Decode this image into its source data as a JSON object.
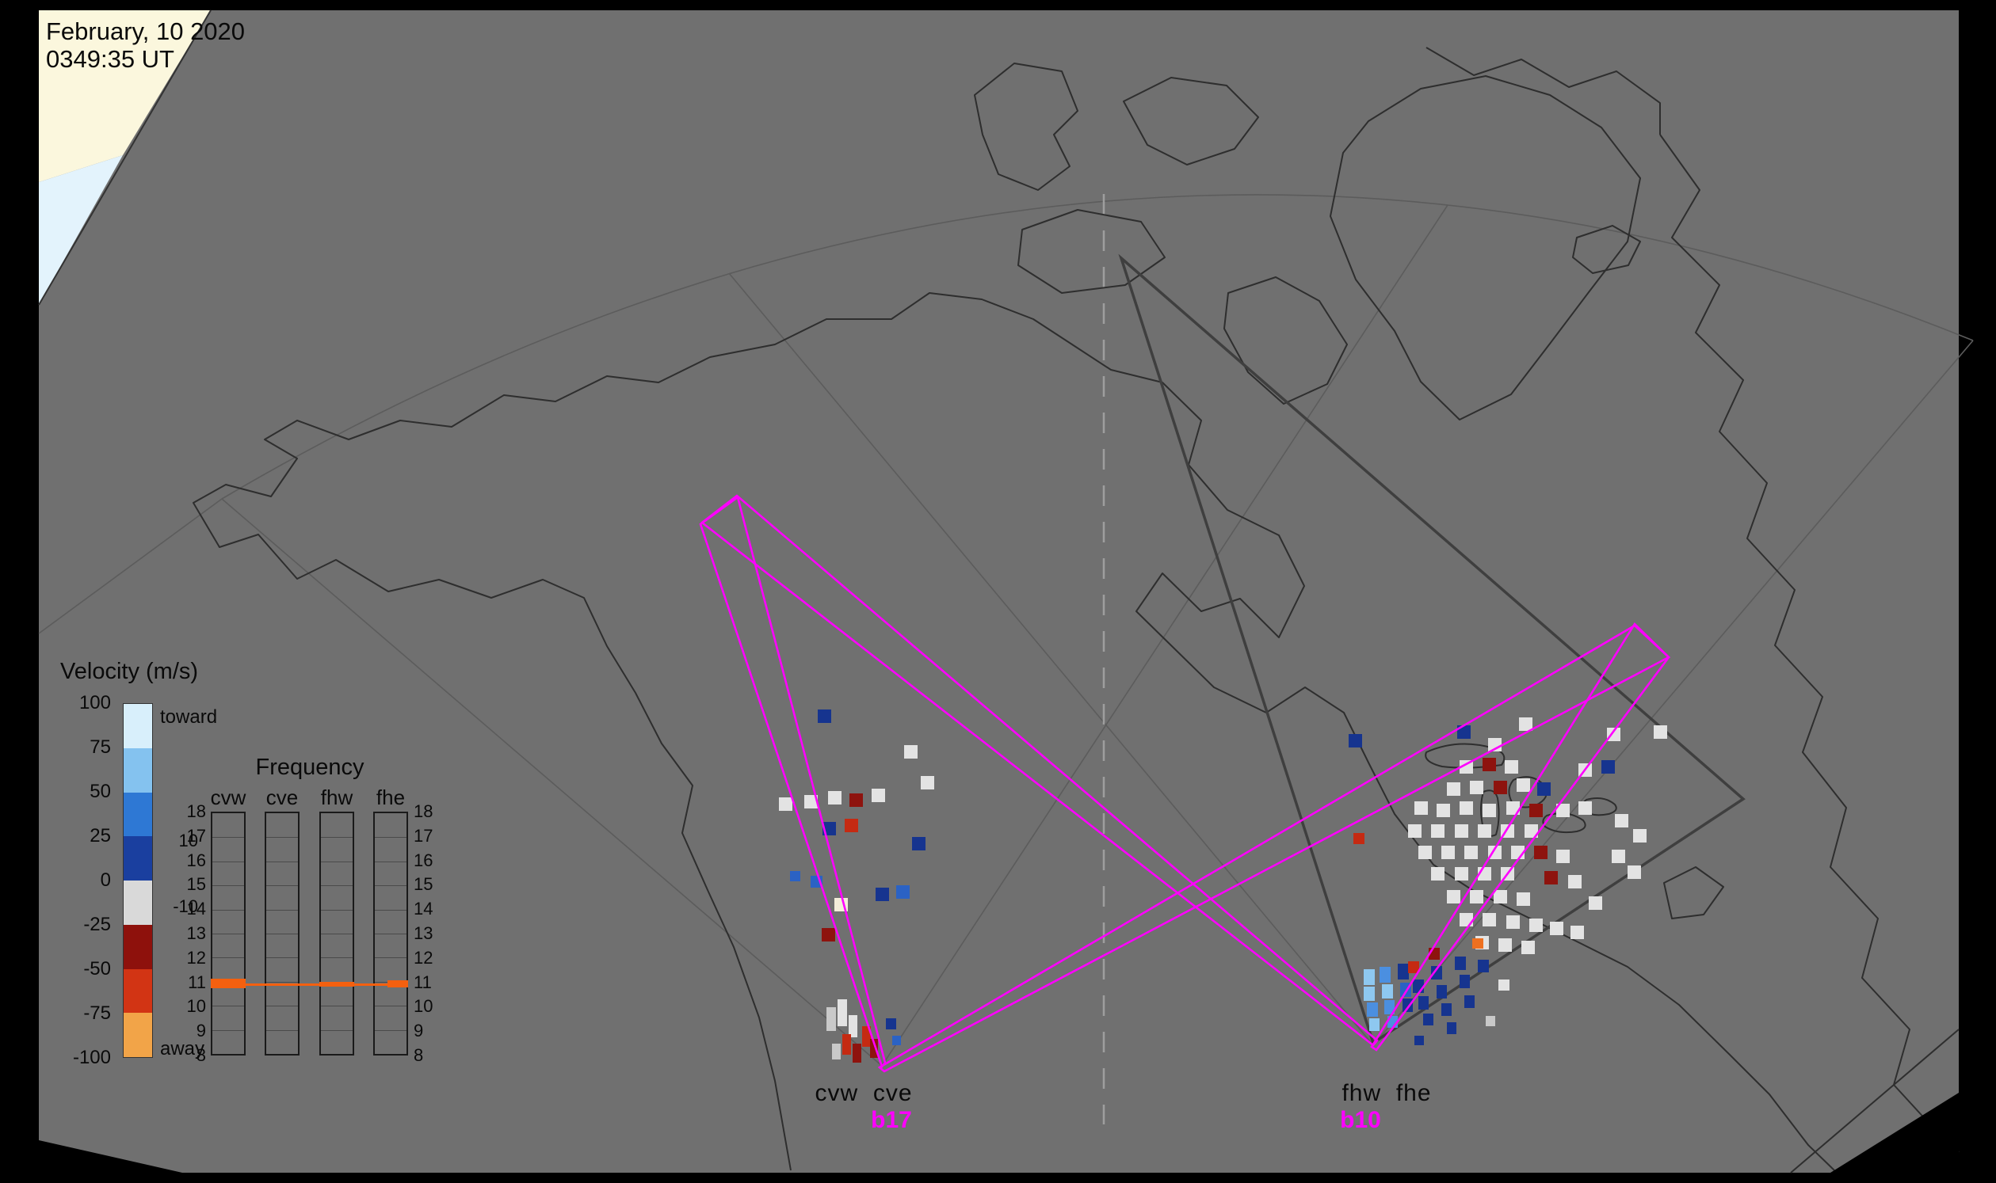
{
  "header": {
    "date": "February, 10 2020",
    "time": "0349:35 UT"
  },
  "velocity_legend": {
    "title": "Velocity (m/s)",
    "toward_label": "toward",
    "away_label": "away",
    "ticks": [
      "100",
      "75",
      "50",
      "25",
      "0",
      "-25",
      "-50",
      "-75",
      "-100"
    ],
    "segment_colors": [
      "#d8effb",
      "#84c2ef",
      "#2e78d4",
      "#1a3f9f",
      "#d9d9d9",
      "#8e110c",
      "#d23414",
      "#f2a448"
    ]
  },
  "frequency_panel": {
    "title": "Frequency",
    "columns": [
      "cvw",
      "cve",
      "fhw",
      "fhe"
    ],
    "scale": [
      "18",
      "17",
      "16",
      "15",
      "14",
      "13",
      "12",
      "11",
      "10",
      "9",
      "8"
    ],
    "aux_top": "10",
    "aux_bottom": "-10",
    "marker_color": "#f4600f"
  },
  "stations": {
    "left_west": "cvw",
    "left_east": "cve",
    "left_beam": "b17",
    "right_west": "fhw",
    "right_east": "fhe",
    "right_beam": "b10"
  },
  "colors": {
    "beam": "#ff00ff",
    "map_bg": "#707070",
    "coast": "#2e2e2e",
    "day_land": "#fbf7dd",
    "day_sea": "#e3f3fc"
  },
  "chart_data": {
    "type": "scatter",
    "velocity_scale_m_s": {
      "min": -100,
      "max": 100
    },
    "frequency_scale_mhz": {
      "min": 8,
      "max": 18,
      "operating_frequency_mhz": {
        "cvw": 11,
        "cve": 11,
        "fhw": 11,
        "fhe": 11
      }
    },
    "beams": {
      "cvw_cve": "b17",
      "fhw_fhe": "b10"
    },
    "palette": {
      "w": "#e3e3e3",
      "g": "#c9c9c9",
      "cr": "#f3edd9",
      "b1": "#16348f",
      "b2": "#2b62c4",
      "b3": "#4b8fe0",
      "b4": "#8ec8f0",
      "r1": "#8e130e",
      "r2": "#c52a12",
      "o": "#ee7020"
    },
    "cells_format": "[x_px, y_px, color_key, width_px(optional), height_px(optional)]",
    "cells": [
      [
        1032,
        896,
        "b1"
      ],
      [
        983,
        1007,
        "w"
      ],
      [
        1015,
        1004,
        "w"
      ],
      [
        1045,
        999,
        "w"
      ],
      [
        1072,
        1002,
        "r1"
      ],
      [
        1100,
        996,
        "w"
      ],
      [
        1038,
        1038,
        "b1"
      ],
      [
        1066,
        1034,
        "r2"
      ],
      [
        1141,
        941,
        "w"
      ],
      [
        1162,
        980,
        "w"
      ],
      [
        1151,
        1057,
        "b1"
      ],
      [
        997,
        1100,
        "b2",
        13,
        13
      ],
      [
        1023,
        1106,
        "b2",
        15,
        15
      ],
      [
        1105,
        1121,
        "b1"
      ],
      [
        1131,
        1118,
        "b2"
      ],
      [
        1053,
        1134,
        "cr"
      ],
      [
        1037,
        1172,
        "r1"
      ],
      [
        1043,
        1272,
        "g",
        12,
        30
      ],
      [
        1057,
        1262,
        "w",
        12,
        34
      ],
      [
        1071,
        1282,
        "w",
        11,
        28
      ],
      [
        1063,
        1306,
        "r2",
        11,
        26
      ],
      [
        1076,
        1318,
        "r1",
        11,
        24
      ],
      [
        1088,
        1296,
        "r2",
        11,
        26
      ],
      [
        1098,
        1312,
        "r1",
        10,
        24
      ],
      [
        1050,
        1318,
        "g",
        11,
        20
      ],
      [
        1118,
        1286,
        "b1",
        13,
        14
      ],
      [
        1126,
        1308,
        "b2",
        11,
        12
      ],
      [
        1702,
        927,
        "b1"
      ],
      [
        1839,
        916,
        "b1"
      ],
      [
        1878,
        932,
        "w"
      ],
      [
        1917,
        906,
        "w"
      ],
      [
        2028,
        919,
        "w"
      ],
      [
        2087,
        916,
        "w"
      ],
      [
        1992,
        964,
        "w"
      ],
      [
        2021,
        960,
        "b1"
      ],
      [
        1842,
        960,
        "w"
      ],
      [
        1871,
        957,
        "r1"
      ],
      [
        1899,
        960,
        "w"
      ],
      [
        1826,
        988,
        "w"
      ],
      [
        1855,
        986,
        "w"
      ],
      [
        1885,
        986,
        "r1"
      ],
      [
        1914,
        983,
        "w"
      ],
      [
        1940,
        988,
        "b1"
      ],
      [
        1785,
        1012,
        "w"
      ],
      [
        1813,
        1015,
        "w"
      ],
      [
        1842,
        1012,
        "w"
      ],
      [
        1871,
        1015,
        "w"
      ],
      [
        1901,
        1012,
        "w"
      ],
      [
        1930,
        1015,
        "r1"
      ],
      [
        1964,
        1015,
        "w"
      ],
      [
        1992,
        1012,
        "w"
      ],
      [
        1777,
        1041,
        "w"
      ],
      [
        1806,
        1041,
        "w"
      ],
      [
        1836,
        1041,
        "w"
      ],
      [
        1865,
        1041,
        "w"
      ],
      [
        1894,
        1041,
        "w"
      ],
      [
        1924,
        1041,
        "w"
      ],
      [
        1708,
        1052,
        "r2",
        14,
        14
      ],
      [
        1790,
        1068,
        "w"
      ],
      [
        1819,
        1068,
        "w"
      ],
      [
        1848,
        1068,
        "w"
      ],
      [
        1878,
        1068,
        "w"
      ],
      [
        1907,
        1068,
        "w"
      ],
      [
        1936,
        1068,
        "r1"
      ],
      [
        1964,
        1073,
        "w"
      ],
      [
        1806,
        1095,
        "w"
      ],
      [
        1836,
        1095,
        "w"
      ],
      [
        1865,
        1095,
        "w"
      ],
      [
        1894,
        1095,
        "w"
      ],
      [
        1949,
        1100,
        "r1"
      ],
      [
        1979,
        1105,
        "w"
      ],
      [
        1826,
        1124,
        "w"
      ],
      [
        1855,
        1124,
        "w"
      ],
      [
        1885,
        1124,
        "w"
      ],
      [
        1914,
        1127,
        "w"
      ],
      [
        2005,
        1132,
        "w"
      ],
      [
        1842,
        1153,
        "w"
      ],
      [
        1871,
        1153,
        "w"
      ],
      [
        1901,
        1156,
        "w"
      ],
      [
        1930,
        1160,
        "w"
      ],
      [
        1956,
        1164,
        "w"
      ],
      [
        1982,
        1169,
        "w"
      ],
      [
        1862,
        1182,
        "w"
      ],
      [
        1891,
        1185,
        "w"
      ],
      [
        1920,
        1188,
        "w"
      ],
      [
        2038,
        1028,
        "w"
      ],
      [
        2061,
        1047,
        "w"
      ],
      [
        2034,
        1073,
        "w"
      ],
      [
        2054,
        1093,
        "w"
      ],
      [
        1721,
        1224,
        "b4",
        14,
        20
      ],
      [
        1721,
        1246,
        "b4",
        14,
        18
      ],
      [
        1725,
        1266,
        "b3",
        14,
        18
      ],
      [
        1728,
        1286,
        "b4",
        13,
        16
      ],
      [
        1741,
        1221,
        "b3",
        14,
        20
      ],
      [
        1744,
        1243,
        "b4",
        14,
        18
      ],
      [
        1747,
        1263,
        "b3",
        13,
        18
      ],
      [
        1751,
        1283,
        "b3",
        13,
        15
      ],
      [
        1764,
        1217,
        "b1",
        14,
        20
      ],
      [
        1767,
        1241,
        "b2",
        14,
        18
      ],
      [
        1770,
        1261,
        "b1",
        13,
        17
      ],
      [
        1777,
        1214,
        "r2",
        14,
        15
      ],
      [
        1783,
        1237,
        "b1",
        14,
        17
      ],
      [
        1790,
        1258,
        "b1",
        13,
        17
      ],
      [
        1796,
        1280,
        "b1",
        13,
        15
      ],
      [
        1803,
        1197,
        "r1",
        14,
        15
      ],
      [
        1806,
        1220,
        "b1",
        14,
        17
      ],
      [
        1813,
        1244,
        "b1",
        13,
        17
      ],
      [
        1819,
        1267,
        "b1",
        13,
        16
      ],
      [
        1826,
        1291,
        "b1",
        12,
        15
      ],
      [
        1836,
        1208,
        "b1",
        14,
        17
      ],
      [
        1842,
        1231,
        "b1",
        13,
        17
      ],
      [
        1848,
        1257,
        "b1",
        13,
        16
      ],
      [
        1858,
        1185,
        "o",
        14,
        13
      ],
      [
        1865,
        1212,
        "b1",
        14,
        16
      ],
      [
        1875,
        1283,
        "g",
        12,
        13
      ],
      [
        1785,
        1308,
        "b1",
        12,
        12
      ],
      [
        1891,
        1237,
        "w",
        14,
        14
      ]
    ]
  }
}
